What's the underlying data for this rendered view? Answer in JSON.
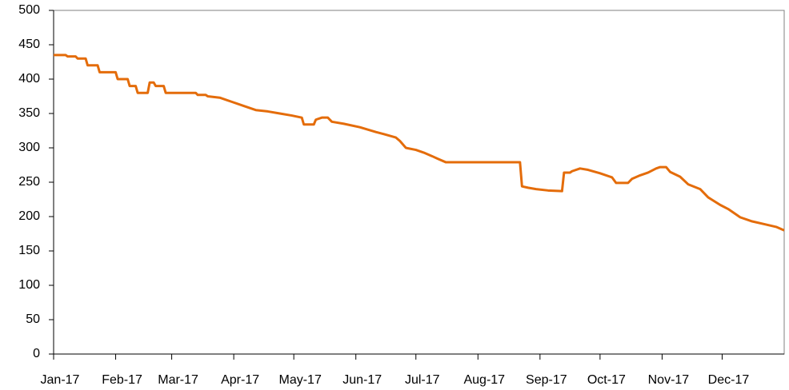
{
  "chart_data": {
    "type": "line",
    "x": [
      0,
      6,
      7,
      11,
      12,
      16,
      17,
      22,
      23,
      31,
      32,
      37,
      38,
      41,
      42,
      47,
      48,
      50,
      51,
      55,
      56,
      71,
      72,
      76,
      77,
      83,
      89,
      95,
      101,
      107,
      113,
      119,
      124,
      125,
      130,
      131,
      134,
      137,
      139,
      145,
      153,
      161,
      165,
      171,
      173,
      176,
      181,
      185,
      189,
      192,
      196,
      233,
      234,
      237,
      241,
      247,
      254,
      255,
      258,
      259,
      263,
      267,
      273,
      279,
      281,
      287,
      289,
      293,
      297,
      301,
      303,
      306,
      308,
      313,
      317,
      323,
      327,
      333,
      337,
      341,
      343,
      349,
      355,
      361,
      365
    ],
    "series": [
      {
        "color": "#e46c0a",
        "values": [
          435,
          435,
          433,
          433,
          430,
          430,
          420,
          420,
          410,
          410,
          400,
          400,
          390,
          390,
          380,
          380,
          395,
          395,
          390,
          390,
          380,
          380,
          377,
          377,
          375,
          373,
          367,
          361,
          355,
          353,
          350,
          347,
          344,
          334,
          334,
          341,
          344,
          344,
          338,
          335,
          330,
          323,
          320,
          315,
          310,
          300,
          297,
          293,
          288,
          284,
          279,
          279,
          244,
          242,
          240,
          238,
          237,
          264,
          264,
          266,
          270,
          268,
          263,
          257,
          249,
          249,
          255,
          260,
          264,
          270,
          272,
          272,
          265,
          258,
          247,
          240,
          228,
          217,
          211,
          203,
          199,
          193,
          189,
          185,
          180
        ]
      }
    ],
    "xlim": [
      0,
      365
    ],
    "xticks": [
      {
        "value": 0,
        "label": "Jan-17"
      },
      {
        "value": 31,
        "label": "Feb-17"
      },
      {
        "value": 59,
        "label": "Mar-17"
      },
      {
        "value": 90,
        "label": "Apr-17"
      },
      {
        "value": 120,
        "label": "May-17"
      },
      {
        "value": 151,
        "label": "Jun-17"
      },
      {
        "value": 181,
        "label": "Jul-17"
      },
      {
        "value": 212,
        "label": "Aug-17"
      },
      {
        "value": 243,
        "label": "Sep-17"
      },
      {
        "value": 273,
        "label": "Oct-17"
      },
      {
        "value": 304,
        "label": "Nov-17"
      },
      {
        "value": 334,
        "label": "Dec-17"
      }
    ],
    "ylim": [
      0,
      500
    ],
    "yticks": [
      0,
      50,
      100,
      150,
      200,
      250,
      300,
      350,
      400,
      450,
      500
    ]
  }
}
